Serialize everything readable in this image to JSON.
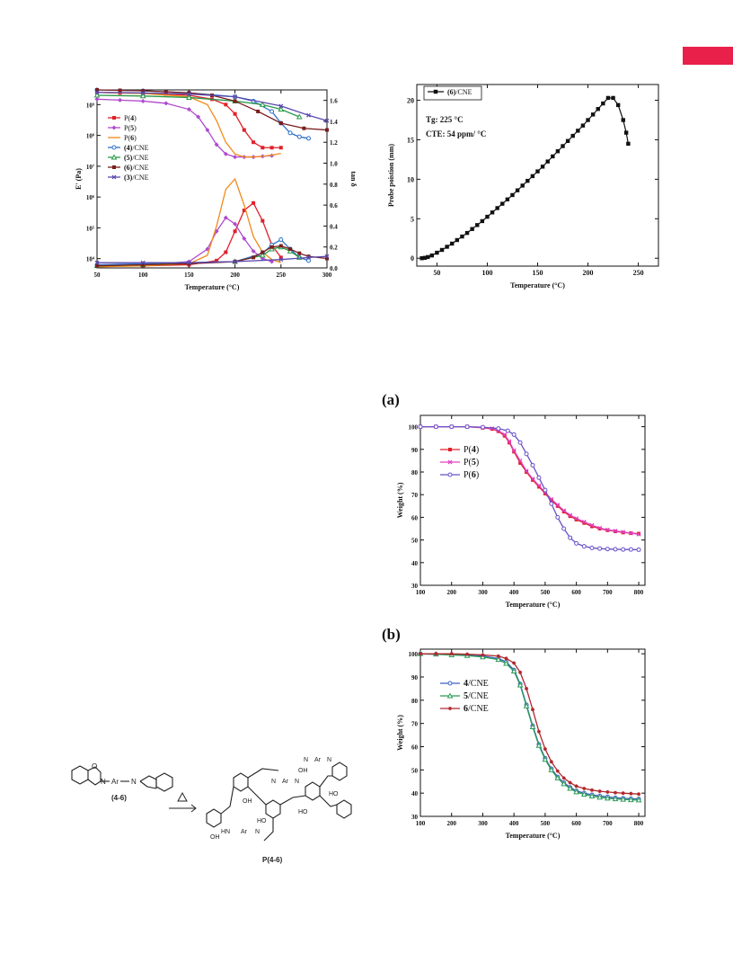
{
  "page": {
    "accent_color": "#e8204a"
  },
  "chart_data": [
    {
      "id": "dma",
      "type": "line",
      "xlabel": "Temperature (°C)",
      "ylabel": "E' (Pa)",
      "ylabel_right": "tan δ",
      "xlim": [
        50,
        300
      ],
      "xticks": [
        50,
        100,
        150,
        200,
        250,
        300
      ],
      "y_scale": "log",
      "ylim": [
        5000,
        3000000000
      ],
      "yticks": [
        10000,
        100000,
        1000000,
        10000000,
        100000000,
        1000000000
      ],
      "ytick_labels": [
        "10⁴",
        "10⁵",
        "10⁶",
        "10⁷",
        "10⁸",
        "10⁹"
      ],
      "ylim_right": [
        0,
        1.7
      ],
      "yticks_right": [
        "0.0",
        "0.2",
        "0.4",
        "0.6",
        "0.8",
        "1.0",
        "1.2",
        "1.4",
        "1.6"
      ],
      "legend_position": "left-center",
      "grid": false,
      "series": [
        {
          "name": "P(4)",
          "bold": "4",
          "color": "#e0202a",
          "marker": "square",
          "axis": "left",
          "x": [
            50,
            75,
            100,
            125,
            150,
            175,
            190,
            200,
            210,
            220,
            230,
            240,
            250
          ],
          "y": [
            2500000000,
            2400000000,
            2300000000,
            2200000000,
            2000000000,
            1500000000,
            1000000000,
            500000000,
            150000000,
            60000000,
            40000000,
            40000000,
            40000000
          ]
        },
        {
          "name": "P(4)",
          "color": "#e0202a",
          "marker": "square",
          "axis": "right",
          "legend": false,
          "x": [
            50,
            100,
            150,
            180,
            190,
            200,
            210,
            220,
            230,
            240,
            250
          ],
          "y": [
            0.02,
            0.02,
            0.03,
            0.07,
            0.15,
            0.35,
            0.55,
            0.62,
            0.45,
            0.22,
            0.1
          ]
        },
        {
          "name": "P(5)",
          "bold": "5",
          "color": "#b04ad0",
          "marker": "diamond",
          "axis": "left",
          "x": [
            50,
            75,
            100,
            125,
            150,
            160,
            170,
            180,
            190,
            200,
            210,
            220,
            230,
            240
          ],
          "y": [
            1500000000,
            1400000000,
            1300000000,
            1100000000,
            700000000,
            400000000,
            150000000,
            50000000,
            25000000,
            20000000,
            20000000,
            20000000,
            21000000,
            22000000
          ]
        },
        {
          "name": "P(5)",
          "color": "#b04ad0",
          "marker": "diamond",
          "axis": "right",
          "legend": false,
          "x": [
            50,
            100,
            150,
            170,
            180,
            190,
            200,
            210,
            220,
            230,
            240
          ],
          "y": [
            0.02,
            0.03,
            0.06,
            0.18,
            0.35,
            0.48,
            0.42,
            0.28,
            0.16,
            0.09,
            0.06
          ]
        },
        {
          "name": "P(6)",
          "bold": "6",
          "color": "#f08a1a",
          "marker": "none",
          "axis": "left",
          "x": [
            50,
            100,
            150,
            170,
            180,
            190,
            200,
            210,
            220,
            230,
            240,
            250
          ],
          "y": [
            2500000000,
            2300000000,
            1800000000,
            1000000000,
            300000000,
            60000000,
            25000000,
            20000000,
            20000000,
            21000000,
            23000000,
            26000000
          ]
        },
        {
          "name": "P(6)",
          "color": "#f08a1a",
          "marker": "none",
          "axis": "right",
          "legend": false,
          "x": [
            50,
            100,
            150,
            170,
            180,
            190,
            200,
            210,
            220,
            230,
            240,
            250
          ],
          "y": [
            0.01,
            0.02,
            0.04,
            0.12,
            0.4,
            0.75,
            0.85,
            0.6,
            0.3,
            0.15,
            0.08,
            0.05
          ]
        },
        {
          "name": "(4)/CNE",
          "bold": "(4)",
          "tail": "/CNE",
          "color": "#3070c8",
          "marker": "circle-open",
          "axis": "left",
          "x": [
            50,
            100,
            150,
            200,
            220,
            240,
            250,
            260,
            270,
            280
          ],
          "y": [
            3000000000,
            2800000000,
            2400000000,
            1800000000,
            1300000000,
            600000000,
            250000000,
            120000000,
            90000000,
            80000000
          ]
        },
        {
          "name": "(4)/CNE",
          "color": "#3070c8",
          "marker": "circle-open",
          "axis": "right",
          "legend": false,
          "x": [
            50,
            100,
            200,
            230,
            240,
            250,
            260,
            270,
            280
          ],
          "y": [
            0.03,
            0.04,
            0.06,
            0.14,
            0.22,
            0.27,
            0.18,
            0.1,
            0.07
          ]
        },
        {
          "name": "(5)/CNE",
          "bold": "(5)",
          "tail": "/CNE",
          "color": "#2a9a48",
          "marker": "triangle-open",
          "axis": "left",
          "x": [
            50,
            100,
            150,
            200,
            230,
            250,
            270
          ],
          "y": [
            2000000000,
            1900000000,
            1700000000,
            1300000000,
            1000000000,
            700000000,
            400000000
          ]
        },
        {
          "name": "(5)/CNE",
          "color": "#2a9a48",
          "marker": "triangle-open",
          "axis": "right",
          "legend": false,
          "x": [
            50,
            100,
            200,
            230,
            240,
            250,
            260,
            270
          ],
          "y": [
            0.02,
            0.03,
            0.06,
            0.12,
            0.18,
            0.2,
            0.16,
            0.1
          ]
        },
        {
          "name": "(6)/CNE",
          "bold": "(6)",
          "tail": "/CNE",
          "color": "#7a1e1e",
          "marker": "square",
          "axis": "left",
          "x": [
            50,
            75,
            100,
            125,
            150,
            175,
            200,
            225,
            250,
            275,
            300
          ],
          "y": [
            3000000000,
            2900000000,
            2800000000,
            2600000000,
            2400000000,
            2000000000,
            1300000000,
            600000000,
            250000000,
            170000000,
            150000000
          ]
        },
        {
          "name": "(6)/CNE",
          "color": "#7a1e1e",
          "marker": "square",
          "axis": "right",
          "legend": false,
          "x": [
            50,
            100,
            150,
            200,
            220,
            230,
            240,
            250,
            260,
            270,
            280,
            300
          ],
          "y": [
            0.02,
            0.03,
            0.04,
            0.06,
            0.1,
            0.15,
            0.2,
            0.21,
            0.18,
            0.14,
            0.11,
            0.09
          ]
        },
        {
          "name": "(3)/CNE",
          "bold": "(3)",
          "tail": "/CNE",
          "color": "#5a4ab0",
          "marker": "x",
          "axis": "left",
          "x": [
            50,
            100,
            150,
            200,
            250,
            280,
            300
          ],
          "y": [
            2500000000,
            2400000000,
            2200000000,
            1800000000,
            900000000,
            450000000,
            300000000
          ]
        },
        {
          "name": "(3)/CNE",
          "color": "#5a4ab0",
          "marker": "x",
          "axis": "right",
          "legend": false,
          "x": [
            50,
            100,
            150,
            200,
            250,
            280,
            300
          ],
          "y": [
            0.05,
            0.05,
            0.05,
            0.06,
            0.08,
            0.1,
            0.11
          ]
        }
      ]
    },
    {
      "id": "tma",
      "type": "line",
      "xlabel": "Temperature (°C)",
      "ylabel": "Probe poistion (mm)",
      "xlim": [
        30,
        270
      ],
      "xticks": [
        50,
        100,
        150,
        200,
        250
      ],
      "ylim": [
        -1,
        22
      ],
      "yticks": [
        0,
        5,
        10,
        15,
        20
      ],
      "legend_position": "top-left",
      "grid": false,
      "annotations": [
        "Tg: 225 °C",
        "CTE: 54 ppm/ °C"
      ],
      "series": [
        {
          "name": "(6)/CNE",
          "bold": "(6)",
          "tail": "/CNE",
          "color": "#111111",
          "marker": "square",
          "x": [
            35,
            38,
            41,
            45,
            50,
            55,
            60,
            65,
            70,
            75,
            80,
            85,
            90,
            95,
            100,
            105,
            110,
            115,
            120,
            125,
            130,
            135,
            140,
            145,
            150,
            155,
            160,
            165,
            170,
            175,
            180,
            185,
            190,
            195,
            200,
            205,
            210,
            215,
            220,
            225,
            230,
            235,
            238,
            240
          ],
          "y": [
            0,
            0.05,
            0.15,
            0.35,
            0.7,
            1.05,
            1.45,
            1.85,
            2.3,
            2.75,
            3.2,
            3.7,
            4.2,
            4.7,
            5.25,
            5.8,
            6.35,
            6.9,
            7.45,
            8.0,
            8.6,
            9.2,
            9.8,
            10.4,
            11.0,
            11.6,
            12.25,
            12.9,
            13.55,
            14.2,
            14.85,
            15.5,
            16.15,
            16.8,
            17.5,
            18.2,
            18.9,
            19.6,
            20.3,
            20.3,
            19.4,
            17.5,
            15.9,
            14.5
          ]
        }
      ]
    },
    {
      "id": "tga-a",
      "panel": "(a)",
      "type": "line",
      "xlabel": "Temperature (°C)",
      "ylabel": "Weight (%)",
      "xlim": [
        100,
        820
      ],
      "xticks": [
        100,
        200,
        300,
        400,
        500,
        600,
        700,
        800
      ],
      "ylim": [
        30,
        105
      ],
      "yticks": [
        30,
        40,
        50,
        60,
        70,
        80,
        90,
        100
      ],
      "legend_position": "left-center",
      "grid": false,
      "series": [
        {
          "name": "P(4)",
          "bold": "4",
          "color": "#e0202a",
          "marker": "square",
          "x": [
            100,
            150,
            200,
            250,
            300,
            330,
            350,
            370,
            385,
            400,
            420,
            440,
            460,
            480,
            500,
            520,
            540,
            560,
            580,
            600,
            625,
            650,
            675,
            700,
            725,
            750,
            775,
            800
          ],
          "y": [
            100,
            100,
            100,
            100,
            99.5,
            99,
            98,
            96,
            93,
            89,
            84,
            80,
            76.5,
            73.5,
            70.5,
            67.5,
            65,
            62.5,
            60.5,
            59,
            57.5,
            56,
            55,
            54.3,
            53.8,
            53.3,
            53,
            52.8
          ]
        },
        {
          "name": "P(5)",
          "bold": "5",
          "color": "#e040c0",
          "marker": "x",
          "x": [
            100,
            150,
            200,
            250,
            300,
            330,
            350,
            370,
            385,
            400,
            420,
            440,
            460,
            480,
            500,
            520,
            540,
            560,
            580,
            600,
            625,
            650,
            675,
            700,
            725,
            750,
            775,
            800
          ],
          "y": [
            100,
            100,
            100,
            100,
            99.6,
            99.2,
            98.3,
            96.5,
            93.5,
            89.5,
            85,
            80.5,
            77,
            74,
            71,
            68,
            65.5,
            63,
            61,
            59.5,
            58,
            56.5,
            55.3,
            54.5,
            54,
            53.5,
            53,
            52.5
          ]
        },
        {
          "name": "P(6)",
          "bold": "6",
          "color": "#6a52c8",
          "marker": "circle-open",
          "x": [
            100,
            150,
            200,
            250,
            300,
            350,
            380,
            400,
            420,
            440,
            460,
            480,
            500,
            520,
            540,
            560,
            580,
            600,
            625,
            650,
            675,
            700,
            725,
            750,
            775,
            800
          ],
          "y": [
            100,
            100,
            100,
            100,
            99.8,
            99.2,
            98.2,
            96.5,
            93,
            88,
            83,
            77.5,
            72,
            66,
            60,
            55,
            51,
            48.5,
            47.2,
            46.5,
            46.2,
            46,
            45.9,
            45.8,
            45.8,
            45.7
          ]
        }
      ]
    },
    {
      "id": "tga-b",
      "panel": "(b)",
      "type": "line",
      "xlabel": "Temperature (°C)",
      "ylabel": "Weight (%)",
      "xlim": [
        100,
        820
      ],
      "xticks": [
        100,
        200,
        300,
        400,
        500,
        600,
        700,
        800
      ],
      "ylim": [
        30,
        102
      ],
      "yticks": [
        30,
        40,
        50,
        60,
        70,
        80,
        90,
        100
      ],
      "legend_position": "left-center",
      "grid": false,
      "series": [
        {
          "name": "4/CNE",
          "bold": "4",
          "tail": "/CNE",
          "color": "#3a62c0",
          "marker": "circle-open",
          "x": [
            100,
            150,
            200,
            250,
            300,
            350,
            375,
            400,
            420,
            440,
            460,
            480,
            500,
            520,
            540,
            560,
            580,
            600,
            625,
            650,
            675,
            700,
            725,
            750,
            775,
            800
          ],
          "y": [
            100,
            99.8,
            99.6,
            99.4,
            99,
            98,
            96.5,
            93,
            87,
            78,
            69,
            61,
            55,
            50.5,
            47,
            44.5,
            42.5,
            41,
            40,
            39.3,
            38.8,
            38.4,
            38,
            37.8,
            37.6,
            37.5
          ]
        },
        {
          "name": "5/CNE",
          "bold": "5",
          "tail": "/CNE",
          "color": "#2a9a58",
          "marker": "triangle-open",
          "x": [
            100,
            150,
            200,
            250,
            300,
            350,
            375,
            400,
            420,
            440,
            460,
            480,
            500,
            520,
            540,
            560,
            580,
            600,
            625,
            650,
            675,
            700,
            725,
            750,
            775,
            800
          ],
          "y": [
            100,
            99.8,
            99.5,
            99.2,
            98.6,
            97.5,
            95.8,
            92.5,
            86.5,
            77.5,
            68.5,
            60.5,
            54.5,
            50,
            46.5,
            44,
            42,
            40.5,
            39.5,
            38.7,
            38.2,
            37.8,
            37.5,
            37.3,
            37.1,
            37
          ]
        },
        {
          "name": "6/CNE",
          "bold": "6",
          "tail": "/CNE",
          "color": "#b0282e",
          "marker": "star",
          "x": [
            100,
            150,
            200,
            250,
            300,
            350,
            375,
            400,
            420,
            440,
            460,
            480,
            500,
            520,
            540,
            560,
            580,
            600,
            625,
            650,
            675,
            700,
            725,
            750,
            775,
            800
          ],
          "y": [
            100,
            100,
            100,
            99.8,
            99.5,
            99,
            98,
            96,
            92,
            85,
            76,
            66.5,
            59,
            53.5,
            49.5,
            46.5,
            44.5,
            43,
            42,
            41.3,
            40.8,
            40.5,
            40.2,
            40,
            39.8,
            39.6
          ]
        }
      ]
    }
  ],
  "scheme": {
    "monomer_label": "(4-6)",
    "polymer_label": "P(4-6)",
    "ar": "Ar",
    "n": "N",
    "hn": "HN",
    "oh": "OH",
    "ho": "HO"
  }
}
